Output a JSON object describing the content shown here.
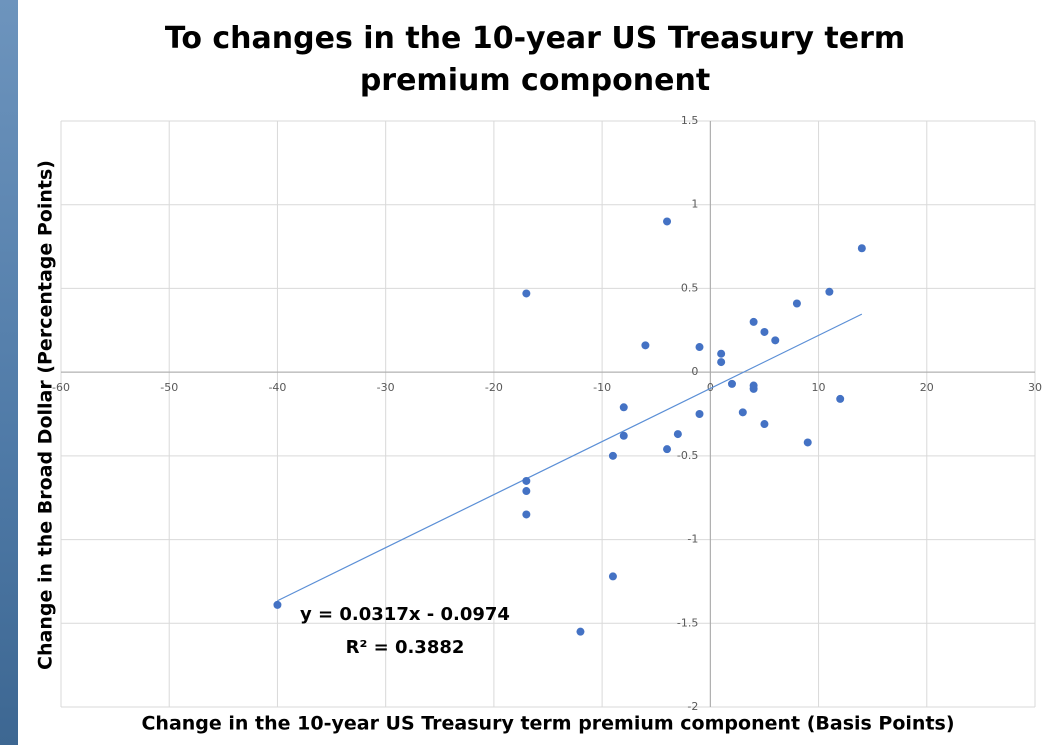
{
  "chart_data": {
    "type": "scatter",
    "title": "To changes in the 10-year US Treasury term premium component",
    "x_label": "Change in the 10-year US Treasury term premium component (Basis Points)",
    "y_label": "Change in the Broad Dollar (Percentage Points)",
    "x": [
      -40,
      -17,
      -17,
      -17,
      -17,
      -12,
      -9,
      -9,
      -8,
      -8,
      -6,
      -4,
      -4,
      -3,
      -1,
      -1,
      1,
      1,
      2,
      3,
      4,
      4,
      4,
      5,
      5,
      6,
      8,
      9,
      11,
      12,
      14
    ],
    "values": [
      -1.39,
      0.47,
      -0.65,
      -0.71,
      -0.85,
      -1.55,
      -1.22,
      -0.5,
      -0.21,
      -0.38,
      0.16,
      0.9,
      -0.46,
      -0.37,
      0.15,
      -0.25,
      0.11,
      0.06,
      -0.07,
      -0.24,
      0.3,
      -0.08,
      -0.1,
      0.24,
      -0.31,
      0.19,
      0.41,
      -0.42,
      0.48,
      -0.16,
      0.74
    ],
    "color": "#4472c4",
    "trendline": {
      "slope": 0.0317,
      "intercept": -0.0974,
      "color": "#5b8fd6",
      "equation": "y = 0.0317x - 0.0974",
      "r_squared": "R² = 0.3882"
    },
    "xlim": [
      -60,
      30
    ],
    "xticks": [
      -60,
      -50,
      -40,
      -30,
      -20,
      -10,
      0,
      10,
      20,
      30
    ],
    "ylim": [
      -2,
      1.5
    ],
    "yticks": [
      1.5,
      1,
      0.5,
      0,
      -0.5,
      -1,
      -1.5,
      -2
    ],
    "grid": true
  }
}
